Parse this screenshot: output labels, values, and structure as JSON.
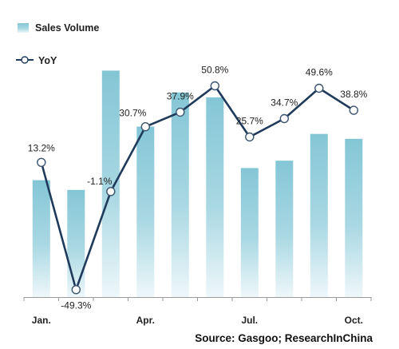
{
  "chart_data": {
    "type": "bar+line",
    "categories": [
      "Jan.",
      "",
      "",
      "Apr.",
      "",
      "",
      "Jul.",
      "",
      "",
      "Oct."
    ],
    "series": [
      {
        "name": "Sales Volume",
        "type": "bar",
        "values": [
          48,
          44,
          93,
          70,
          84,
          82,
          53,
          56,
          67,
          65
        ]
      },
      {
        "name": "YoY",
        "type": "line",
        "values": [
          13.2,
          -49.3,
          -1.1,
          30.7,
          37.9,
          50.8,
          25.7,
          34.7,
          49.6,
          38.8
        ],
        "labels": [
          "13.2%",
          "-49.3%",
          "-1.1%",
          "30.7%",
          "37.9%",
          "50.8%",
          "25.7%",
          "34.7%",
          "49.6%",
          "38.8%"
        ]
      }
    ],
    "legend": {
      "placement": "top-left"
    },
    "grid": false,
    "colors": {
      "bar_top": "#84c6d6",
      "bar_bottom": "#eef7fa",
      "line": "#1f3a5a",
      "marker_fill": "#ffffff"
    }
  },
  "source": "Source: Gasgoo; ResearchInChina"
}
